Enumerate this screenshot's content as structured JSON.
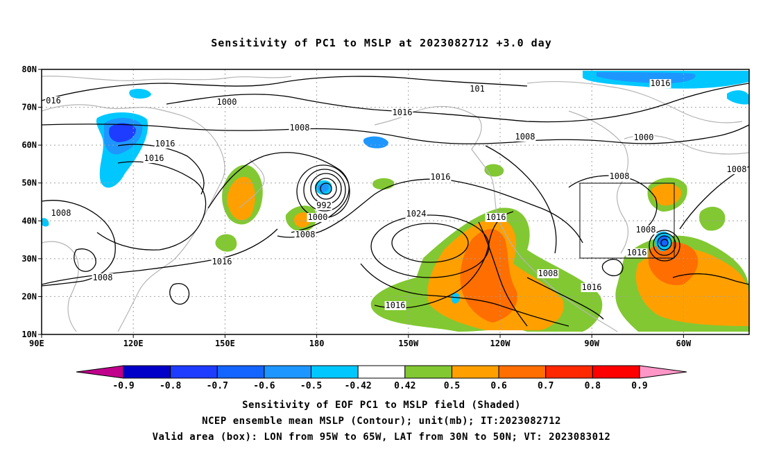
{
  "title": "Sensitivity of PC1 to MSLP at 2023082712 +3.0 day",
  "map": {
    "lat_ticks": [
      "80N",
      "70N",
      "60N",
      "50N",
      "40N",
      "30N",
      "20N",
      "10N"
    ],
    "lon_ticks": [
      "90E",
      "120E",
      "150E",
      "180",
      "150W",
      "120W",
      "90W",
      "60W"
    ],
    "valid_box": {
      "lon_from": "95W",
      "lon_to": "65W",
      "lat_from": "30N",
      "lat_to": "50N"
    },
    "isobar_labels": [
      "016",
      "1000",
      "1016",
      "1008",
      "1016",
      "1016",
      "1008",
      "1008",
      "992",
      "1000",
      "1008",
      "1016",
      "1016",
      "1024",
      "1016",
      "1008",
      "1016",
      "1008",
      "1016",
      "1000",
      "1008",
      "101",
      "1016",
      "1008",
      "1008",
      "1016"
    ],
    "colors": {
      "contour": "#000000",
      "coastline": "#b4b4b4",
      "grid": "#a0a0a0",
      "valid_box": "#000000"
    }
  },
  "colorbar": {
    "labels": [
      "-0.9",
      "-0.8",
      "-0.7",
      "-0.6",
      "-0.5",
      "-0.42",
      "0.42",
      "0.5",
      "0.6",
      "0.7",
      "0.8",
      "0.9"
    ],
    "colors": [
      "#c0008c",
      "#0000c8",
      "#1e3cff",
      "#1464ff",
      "#1e96ff",
      "#00c8ff",
      "#ffffff",
      "#82c832",
      "#ffa000",
      "#ff6e00",
      "#ff2800",
      "#ff0000",
      "#ff96c8"
    ]
  },
  "caption": {
    "line1": "Sensitivity of EOF PC1 to MSLP field (Shaded)",
    "line2": "NCEP ensemble mean MSLP (Contour); unit(mb); IT:2023082712",
    "line3": "Valid area (box): LON from 95W to 65W, LAT from 30N to 50N; VT: 2023083012"
  }
}
